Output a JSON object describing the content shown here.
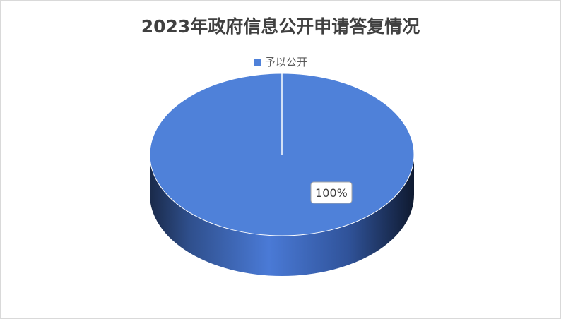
{
  "chart_data": {
    "type": "pie",
    "style": "3d",
    "title": "2023年政府信息公开申请答复情况",
    "categories": [
      "予以公开"
    ],
    "values": [
      100
    ],
    "data_labels": [
      "100%"
    ],
    "colors": [
      "#4f81d9"
    ],
    "legend_position": "top"
  }
}
